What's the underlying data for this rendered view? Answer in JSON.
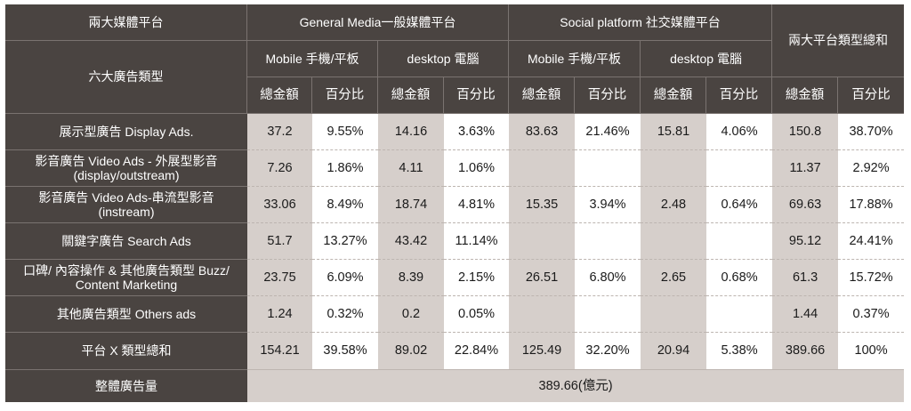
{
  "header": {
    "corner_top": "兩大媒體平台",
    "corner_bottom": "六大廣告類型",
    "group_general": "General Media一般媒體平台",
    "group_social": "Social platform 社交媒體平台",
    "group_total": "兩大平台類型總和",
    "sub_mobile_1": "Mobile 手機/平板",
    "sub_desktop_1": "desktop 電腦",
    "sub_mobile_2": "Mobile 手機/平板",
    "sub_desktop_2": "desktop 電腦",
    "col_amount": "總金額",
    "col_percent": "百分比"
  },
  "rows": [
    {
      "label": "展示型廣告 Display Ads.",
      "label2": "",
      "v": [
        "37.2",
        "9.55%",
        "14.16",
        "3.63%",
        "83.63",
        "21.46%",
        "15.81",
        "4.06%",
        "150.8",
        "38.70%"
      ]
    },
    {
      "label": "影音廣告 Video Ads - 外展型影音",
      "label2": "(display/outstream)",
      "v": [
        "7.26",
        "1.86%",
        "4.11",
        "1.06%",
        "",
        "",
        "",
        "",
        "11.37",
        "2.92%"
      ]
    },
    {
      "label": "影音廣告 Video Ads-串流型影音",
      "label2": "(instream)",
      "v": [
        "33.06",
        "8.49%",
        "18.74",
        "4.81%",
        "15.35",
        "3.94%",
        "2.48",
        "0.64%",
        "69.63",
        "17.88%"
      ]
    },
    {
      "label": "關鍵字廣告 Search Ads",
      "label2": "",
      "v": [
        "51.7",
        "13.27%",
        "43.42",
        "11.14%",
        "",
        "",
        "",
        "",
        "95.12",
        "24.41%"
      ]
    },
    {
      "label": "口碑/ 內容操作 & 其他廣告類型 Buzz/",
      "label2": "Content Marketing",
      "v": [
        "23.75",
        "6.09%",
        "8.39",
        "2.15%",
        "26.51",
        "6.80%",
        "2.65",
        "0.68%",
        "61.3",
        "15.72%"
      ]
    },
    {
      "label": "其他廣告類型 Others ads",
      "label2": "",
      "v": [
        "1.24",
        "0.32%",
        "0.2",
        "0.05%",
        "",
        "",
        "",
        "",
        "1.44",
        "0.37%"
      ]
    },
    {
      "label": "平台 X 類型總和",
      "label2": "",
      "v": [
        "154.21",
        "39.58%",
        "89.02",
        "22.84%",
        "125.49",
        "32.20%",
        "20.94",
        "5.38%",
        "389.66",
        "100%"
      ]
    }
  ],
  "footer": {
    "label": "整體廣告量",
    "value": "389.66(億元)"
  },
  "colors": {
    "header_bg": "#4a4441",
    "cell_gray": "#d6cfcb",
    "cell_white": "#ffffff"
  }
}
